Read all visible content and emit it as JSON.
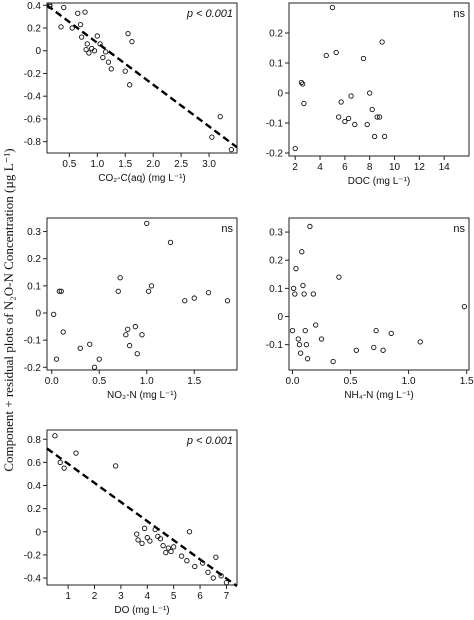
{
  "figure": {
    "ylabel": "Component + residual plots of N₂O-N Concentration (µg L⁻¹)"
  },
  "chart_data": [
    {
      "type": "scatter",
      "panel": "top-left",
      "xlabel": "CO₂-C(aq) (mg L⁻¹)",
      "annotation": "p < 0.001",
      "xlim": [
        0.1,
        3.5
      ],
      "ylim": [
        -0.9,
        0.42
      ],
      "xticks": [
        0.5,
        1.0,
        1.5,
        2.0,
        2.5,
        3.0
      ],
      "xtick_labels": [
        "0.5",
        "1.0",
        "1.5",
        "2.0",
        "2.5",
        "3.0"
      ],
      "yticks": [
        0.4,
        0.2,
        0.0,
        -0.2,
        -0.4,
        -0.6,
        -0.8
      ],
      "ytick_labels": [
        "0.4",
        "0.2",
        "0",
        "-0.2",
        "-0.4",
        "-0.6",
        "-0.8"
      ],
      "points": [
        [
          0.15,
          0.4
        ],
        [
          0.15,
          0.39
        ],
        [
          0.35,
          0.21
        ],
        [
          0.4,
          0.38
        ],
        [
          0.55,
          0.2
        ],
        [
          0.65,
          0.33
        ],
        [
          0.7,
          0.23
        ],
        [
          0.72,
          0.12
        ],
        [
          0.78,
          0.34
        ],
        [
          0.8,
          0.01
        ],
        [
          0.82,
          0.06
        ],
        [
          0.85,
          -0.02
        ],
        [
          0.9,
          0.02
        ],
        [
          0.95,
          0.0
        ],
        [
          1.0,
          0.13
        ],
        [
          1.05,
          0.06
        ],
        [
          1.1,
          -0.06
        ],
        [
          1.15,
          -0.01
        ],
        [
          1.2,
          -0.1
        ],
        [
          1.25,
          -0.16
        ],
        [
          1.5,
          -0.18
        ],
        [
          1.55,
          0.15
        ],
        [
          1.58,
          -0.3
        ],
        [
          1.62,
          0.08
        ],
        [
          3.05,
          -0.76
        ],
        [
          3.2,
          -0.58
        ],
        [
          3.4,
          -0.87
        ]
      ],
      "fit_line": {
        "x": [
          0.1,
          3.5
        ],
        "y": [
          0.4,
          -0.85
        ]
      }
    },
    {
      "type": "scatter",
      "panel": "top-right",
      "xlabel": "DOC (mg L⁻¹)",
      "annotation": "ns",
      "xlim": [
        1.5,
        16
      ],
      "ylim": [
        -0.21,
        0.3
      ],
      "xticks": [
        2,
        4,
        6,
        8,
        10,
        12,
        14
      ],
      "xtick_labels": [
        "2",
        "4",
        "6",
        "8",
        "10",
        "12",
        "14"
      ],
      "yticks": [
        0.2,
        0.1,
        0.0,
        -0.1,
        -0.2
      ],
      "ytick_labels": [
        "0.2",
        "0.1",
        "0",
        "-0.1",
        "-0.2"
      ],
      "points": [
        [
          2.0,
          -0.185
        ],
        [
          2.5,
          0.035
        ],
        [
          2.6,
          0.03
        ],
        [
          2.7,
          -0.035
        ],
        [
          4.5,
          0.125
        ],
        [
          5.0,
          0.285
        ],
        [
          5.3,
          0.135
        ],
        [
          5.5,
          -0.08
        ],
        [
          5.7,
          -0.03
        ],
        [
          6.0,
          -0.095
        ],
        [
          6.3,
          -0.085
        ],
        [
          6.5,
          -0.01
        ],
        [
          6.8,
          -0.105
        ],
        [
          7.5,
          0.115
        ],
        [
          7.8,
          -0.105
        ],
        [
          8.0,
          0.0
        ],
        [
          8.2,
          -0.055
        ],
        [
          8.4,
          -0.145
        ],
        [
          8.6,
          -0.08
        ],
        [
          8.8,
          -0.08
        ],
        [
          9.0,
          0.17
        ],
        [
          9.2,
          -0.145
        ]
      ]
    },
    {
      "type": "scatter",
      "panel": "middle-left",
      "xlabel": "NO₃-N (mg L⁻¹)",
      "annotation": "ns",
      "xlim": [
        -0.05,
        1.95
      ],
      "ylim": [
        -0.21,
        0.35
      ],
      "xticks": [
        0.0,
        0.5,
        1.0,
        1.5
      ],
      "xtick_labels": [
        "0.0",
        "0.5",
        "1.0",
        "1.5"
      ],
      "yticks": [
        0.3,
        0.2,
        0.1,
        0.0,
        -0.1,
        -0.2
      ],
      "ytick_labels": [
        "0.3",
        "0.2",
        "0.1",
        "0",
        "-0.1",
        "-0.2"
      ],
      "points": [
        [
          0.02,
          -0.005
        ],
        [
          0.05,
          -0.17
        ],
        [
          0.08,
          0.08
        ],
        [
          0.1,
          0.08
        ],
        [
          0.12,
          -0.07
        ],
        [
          0.3,
          -0.13
        ],
        [
          0.4,
          -0.115
        ],
        [
          0.45,
          -0.2
        ],
        [
          0.5,
          -0.17
        ],
        [
          0.7,
          0.08
        ],
        [
          0.72,
          0.13
        ],
        [
          0.78,
          -0.08
        ],
        [
          0.8,
          -0.06
        ],
        [
          0.82,
          -0.12
        ],
        [
          0.88,
          -0.05
        ],
        [
          0.9,
          -0.15
        ],
        [
          0.95,
          -0.08
        ],
        [
          1.0,
          0.33
        ],
        [
          1.02,
          0.08
        ],
        [
          1.05,
          0.1
        ],
        [
          1.25,
          0.26
        ],
        [
          1.4,
          0.045
        ],
        [
          1.5,
          0.055
        ],
        [
          1.65,
          0.075
        ],
        [
          1.85,
          0.045
        ]
      ]
    },
    {
      "type": "scatter",
      "panel": "middle-right",
      "xlabel": "NH₄-N (mg L⁻¹)",
      "annotation": "ns",
      "xlim": [
        -0.03,
        1.52
      ],
      "ylim": [
        -0.19,
        0.35
      ],
      "xticks": [
        0.0,
        0.5,
        1.0,
        1.5
      ],
      "xtick_labels": [
        "0.0",
        "0.5",
        "1.0",
        "1.5"
      ],
      "yticks": [
        0.3,
        0.2,
        0.1,
        0.0,
        -0.1
      ],
      "ytick_labels": [
        "0.3",
        "0.2",
        "0.1",
        "0",
        "-0.1"
      ],
      "points": [
        [
          0.0,
          -0.05
        ],
        [
          0.01,
          0.1
        ],
        [
          0.02,
          0.08
        ],
        [
          0.03,
          0.17
        ],
        [
          0.05,
          -0.08
        ],
        [
          0.06,
          -0.1
        ],
        [
          0.07,
          -0.13
        ],
        [
          0.08,
          0.23
        ],
        [
          0.09,
          0.11
        ],
        [
          0.1,
          0.08
        ],
        [
          0.11,
          -0.05
        ],
        [
          0.12,
          -0.1
        ],
        [
          0.13,
          -0.15
        ],
        [
          0.15,
          0.32
        ],
        [
          0.18,
          0.08
        ],
        [
          0.2,
          -0.03
        ],
        [
          0.25,
          -0.08
        ],
        [
          0.35,
          -0.16
        ],
        [
          0.4,
          0.14
        ],
        [
          0.55,
          -0.12
        ],
        [
          0.7,
          -0.11
        ],
        [
          0.72,
          -0.05
        ],
        [
          0.78,
          -0.12
        ],
        [
          0.85,
          -0.06
        ],
        [
          1.1,
          -0.09
        ],
        [
          1.48,
          0.035
        ]
      ]
    },
    {
      "type": "scatter",
      "panel": "bottom-left",
      "xlabel": "DO (mg L⁻¹)",
      "annotation": "p < 0.001",
      "xlim": [
        0.2,
        7.4
      ],
      "ylim": [
        -0.46,
        0.88
      ],
      "xticks": [
        1,
        2,
        3,
        4,
        5,
        6,
        7
      ],
      "xtick_labels": [
        "1",
        "2",
        "3",
        "4",
        "5",
        "6",
        "7"
      ],
      "yticks": [
        0.8,
        0.6,
        0.4,
        0.2,
        0.0,
        -0.2,
        -0.4
      ],
      "ytick_labels": [
        "0.8",
        "0.6",
        "0.4",
        "0.2",
        "0",
        "-0.2",
        "-0.4"
      ],
      "points": [
        [
          0.5,
          0.83
        ],
        [
          0.7,
          0.6
        ],
        [
          0.85,
          0.55
        ],
        [
          1.3,
          0.68
        ],
        [
          2.8,
          0.57
        ],
        [
          3.6,
          -0.02
        ],
        [
          3.65,
          -0.07
        ],
        [
          3.8,
          -0.1
        ],
        [
          3.9,
          0.03
        ],
        [
          4.0,
          -0.05
        ],
        [
          4.1,
          -0.08
        ],
        [
          4.3,
          0.02
        ],
        [
          4.4,
          -0.04
        ],
        [
          4.5,
          -0.06
        ],
        [
          4.6,
          -0.12
        ],
        [
          4.7,
          -0.18
        ],
        [
          4.8,
          -0.14
        ],
        [
          4.9,
          -0.17
        ],
        [
          5.0,
          -0.13
        ],
        [
          5.3,
          -0.21
        ],
        [
          5.5,
          -0.25
        ],
        [
          5.6,
          0.0
        ],
        [
          5.8,
          -0.3
        ],
        [
          6.1,
          -0.27
        ],
        [
          6.3,
          -0.35
        ],
        [
          6.5,
          -0.4
        ],
        [
          6.6,
          -0.22
        ],
        [
          6.8,
          -0.38
        ],
        [
          7.0,
          -0.44
        ]
      ],
      "fit_line": {
        "x": [
          0.2,
          7.4
        ],
        "y": [
          0.72,
          -0.47
        ]
      }
    }
  ]
}
